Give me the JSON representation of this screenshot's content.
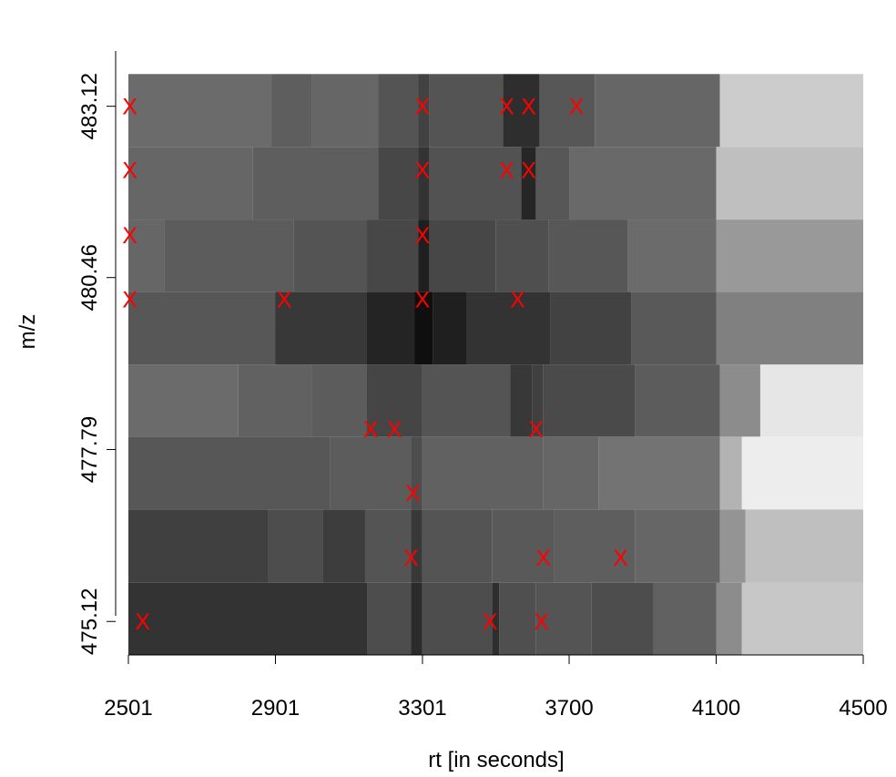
{
  "chart_data": {
    "type": "heatmap",
    "title": "",
    "xlabel": "rt [in seconds]",
    "ylabel": "m/z",
    "xlim": [
      2501,
      4500
    ],
    "ylim": [
      474.6,
      484.6
    ],
    "x_ticks": [
      {
        "value": 2501,
        "label": "2501"
      },
      {
        "value": 2901,
        "label": "2901"
      },
      {
        "value": 3301,
        "label": "3301"
      },
      {
        "value": 3700,
        "label": "3700"
      },
      {
        "value": 4100,
        "label": "4100"
      },
      {
        "value": 4500,
        "label": "4500"
      }
    ],
    "y_ticks": [
      {
        "value": 475.12,
        "label": "475.12"
      },
      {
        "value": 477.79,
        "label": "477.79"
      },
      {
        "value": 480.46,
        "label": "480.46"
      },
      {
        "value": 483.12,
        "label": "483.12"
      }
    ],
    "rows": [
      {
        "mz_low": 474.6,
        "mz_high": 475.72,
        "segments": [
          {
            "x0": 2501,
            "x1": 3150,
            "v": 0.2
          },
          {
            "x0": 3150,
            "x1": 3270,
            "v": 0.3
          },
          {
            "x0": 3270,
            "x1": 3300,
            "v": 0.17
          },
          {
            "x0": 3300,
            "x1": 3490,
            "v": 0.3
          },
          {
            "x0": 3490,
            "x1": 3510,
            "v": 0.18
          },
          {
            "x0": 3510,
            "x1": 3610,
            "v": 0.31
          },
          {
            "x0": 3610,
            "x1": 3760,
            "v": 0.33
          },
          {
            "x0": 3760,
            "x1": 3930,
            "v": 0.3
          },
          {
            "x0": 3930,
            "x1": 4100,
            "v": 0.38
          },
          {
            "x0": 4100,
            "x1": 4170,
            "v": 0.55
          },
          {
            "x0": 4170,
            "x1": 4500,
            "v": 0.78
          }
        ]
      },
      {
        "mz_low": 475.72,
        "mz_high": 476.86,
        "segments": [
          {
            "x0": 2501,
            "x1": 2880,
            "v": 0.25
          },
          {
            "x0": 2880,
            "x1": 3030,
            "v": 0.3
          },
          {
            "x0": 3030,
            "x1": 3145,
            "v": 0.24
          },
          {
            "x0": 3145,
            "x1": 3270,
            "v": 0.33
          },
          {
            "x0": 3270,
            "x1": 3300,
            "v": 0.22
          },
          {
            "x0": 3300,
            "x1": 3490,
            "v": 0.33
          },
          {
            "x0": 3490,
            "x1": 3660,
            "v": 0.35
          },
          {
            "x0": 3660,
            "x1": 3880,
            "v": 0.37
          },
          {
            "x0": 3880,
            "x1": 4110,
            "v": 0.4
          },
          {
            "x0": 4110,
            "x1": 4180,
            "v": 0.58
          },
          {
            "x0": 4180,
            "x1": 4500,
            "v": 0.75
          }
        ]
      },
      {
        "mz_low": 476.86,
        "mz_high": 477.99,
        "segments": [
          {
            "x0": 2501,
            "x1": 3050,
            "v": 0.34
          },
          {
            "x0": 3050,
            "x1": 3270,
            "v": 0.36
          },
          {
            "x0": 3270,
            "x1": 3300,
            "v": 0.3
          },
          {
            "x0": 3300,
            "x1": 3630,
            "v": 0.38
          },
          {
            "x0": 3630,
            "x1": 3780,
            "v": 0.4
          },
          {
            "x0": 3780,
            "x1": 4110,
            "v": 0.45
          },
          {
            "x0": 4110,
            "x1": 4170,
            "v": 0.7
          },
          {
            "x0": 4170,
            "x1": 4500,
            "v": 0.93
          }
        ]
      },
      {
        "mz_low": 477.99,
        "mz_high": 479.11,
        "segments": [
          {
            "x0": 2501,
            "x1": 2800,
            "v": 0.42
          },
          {
            "x0": 2800,
            "x1": 3000,
            "v": 0.38
          },
          {
            "x0": 3000,
            "x1": 3150,
            "v": 0.36
          },
          {
            "x0": 3150,
            "x1": 3300,
            "v": 0.27
          },
          {
            "x0": 3300,
            "x1": 3540,
            "v": 0.33
          },
          {
            "x0": 3540,
            "x1": 3600,
            "v": 0.22
          },
          {
            "x0": 3600,
            "x1": 3630,
            "v": 0.25
          },
          {
            "x0": 3630,
            "x1": 3880,
            "v": 0.29
          },
          {
            "x0": 3880,
            "x1": 4110,
            "v": 0.36
          },
          {
            "x0": 4110,
            "x1": 4220,
            "v": 0.55
          },
          {
            "x0": 4220,
            "x1": 4500,
            "v": 0.9
          }
        ]
      },
      {
        "mz_low": 479.11,
        "mz_high": 480.24,
        "segments": [
          {
            "x0": 2501,
            "x1": 2900,
            "v": 0.34
          },
          {
            "x0": 2900,
            "x1": 3150,
            "v": 0.22
          },
          {
            "x0": 3150,
            "x1": 3280,
            "v": 0.14
          },
          {
            "x0": 3280,
            "x1": 3330,
            "v": 0.06
          },
          {
            "x0": 3330,
            "x1": 3420,
            "v": 0.12
          },
          {
            "x0": 3420,
            "x1": 3650,
            "v": 0.2
          },
          {
            "x0": 3650,
            "x1": 3870,
            "v": 0.26
          },
          {
            "x0": 3870,
            "x1": 4100,
            "v": 0.35
          },
          {
            "x0": 4100,
            "x1": 4500,
            "v": 0.5
          }
        ]
      },
      {
        "mz_low": 480.24,
        "mz_high": 481.36,
        "segments": [
          {
            "x0": 2501,
            "x1": 2600,
            "v": 0.4
          },
          {
            "x0": 2600,
            "x1": 2950,
            "v": 0.36
          },
          {
            "x0": 2950,
            "x1": 3150,
            "v": 0.33
          },
          {
            "x0": 3150,
            "x1": 3290,
            "v": 0.28
          },
          {
            "x0": 3290,
            "x1": 3320,
            "v": 0.12
          },
          {
            "x0": 3320,
            "x1": 3500,
            "v": 0.28
          },
          {
            "x0": 3500,
            "x1": 3645,
            "v": 0.31
          },
          {
            "x0": 3645,
            "x1": 3860,
            "v": 0.34
          },
          {
            "x0": 3860,
            "x1": 4100,
            "v": 0.42
          },
          {
            "x0": 4100,
            "x1": 4500,
            "v": 0.6
          }
        ]
      },
      {
        "mz_low": 481.36,
        "mz_high": 482.49,
        "segments": [
          {
            "x0": 2501,
            "x1": 2840,
            "v": 0.4
          },
          {
            "x0": 2840,
            "x1": 3180,
            "v": 0.37
          },
          {
            "x0": 3180,
            "x1": 3290,
            "v": 0.28
          },
          {
            "x0": 3290,
            "x1": 3320,
            "v": 0.2
          },
          {
            "x0": 3320,
            "x1": 3570,
            "v": 0.32
          },
          {
            "x0": 3570,
            "x1": 3610,
            "v": 0.15
          },
          {
            "x0": 3610,
            "x1": 3700,
            "v": 0.34
          },
          {
            "x0": 3700,
            "x1": 4100,
            "v": 0.41
          },
          {
            "x0": 4100,
            "x1": 4500,
            "v": 0.75
          }
        ]
      },
      {
        "mz_low": 482.49,
        "mz_high": 483.62,
        "segments": [
          {
            "x0": 2501,
            "x1": 2890,
            "v": 0.42
          },
          {
            "x0": 2890,
            "x1": 3000,
            "v": 0.37
          },
          {
            "x0": 3000,
            "x1": 3180,
            "v": 0.4
          },
          {
            "x0": 3180,
            "x1": 3290,
            "v": 0.33
          },
          {
            "x0": 3290,
            "x1": 3320,
            "v": 0.26
          },
          {
            "x0": 3320,
            "x1": 3520,
            "v": 0.33
          },
          {
            "x0": 3520,
            "x1": 3620,
            "v": 0.18
          },
          {
            "x0": 3620,
            "x1": 3770,
            "v": 0.34
          },
          {
            "x0": 3770,
            "x1": 4110,
            "v": 0.4
          },
          {
            "x0": 4110,
            "x1": 4500,
            "v": 0.8
          }
        ]
      }
    ],
    "peaks": [
      {
        "rt": 2505,
        "mz": 483.12
      },
      {
        "rt": 3301,
        "mz": 483.12
      },
      {
        "rt": 3530,
        "mz": 483.12
      },
      {
        "rt": 3590,
        "mz": 483.12
      },
      {
        "rt": 3720,
        "mz": 483.12
      },
      {
        "rt": 2505,
        "mz": 482.13
      },
      {
        "rt": 3301,
        "mz": 482.13
      },
      {
        "rt": 3530,
        "mz": 482.13
      },
      {
        "rt": 3590,
        "mz": 482.13
      },
      {
        "rt": 2505,
        "mz": 481.12
      },
      {
        "rt": 3301,
        "mz": 481.12
      },
      {
        "rt": 2505,
        "mz": 480.12
      },
      {
        "rt": 2925,
        "mz": 480.12
      },
      {
        "rt": 3301,
        "mz": 480.12
      },
      {
        "rt": 3560,
        "mz": 480.12
      },
      {
        "rt": 3160,
        "mz": 478.11
      },
      {
        "rt": 3225,
        "mz": 478.11
      },
      {
        "rt": 3610,
        "mz": 478.11
      },
      {
        "rt": 3275,
        "mz": 477.12
      },
      {
        "rt": 3270,
        "mz": 476.11
      },
      {
        "rt": 3630,
        "mz": 476.11
      },
      {
        "rt": 3840,
        "mz": 476.11
      },
      {
        "rt": 2540,
        "mz": 475.12
      },
      {
        "rt": 3485,
        "mz": 475.12
      },
      {
        "rt": 3625,
        "mz": 475.12
      }
    ],
    "peak_color": "#ff0000",
    "peak_marker": "X",
    "grid": false,
    "legend": "none"
  }
}
